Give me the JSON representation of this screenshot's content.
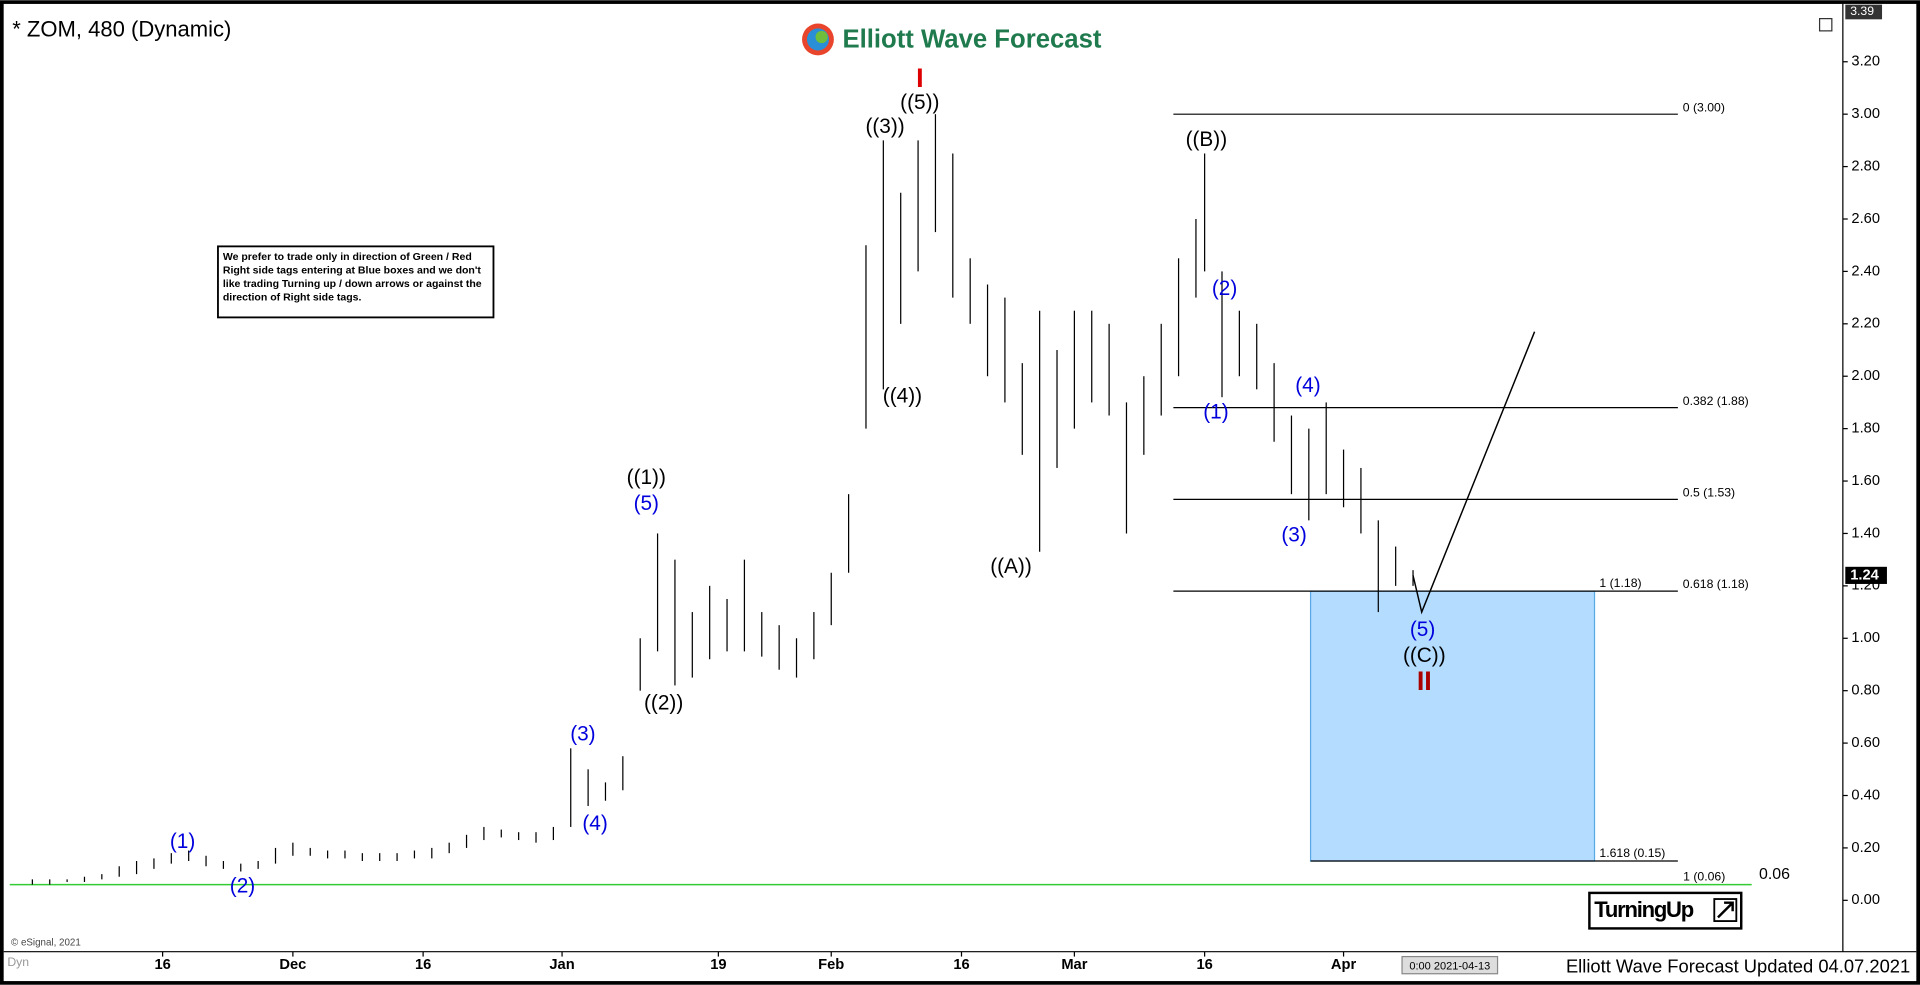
{
  "chart_data": {
    "type": "ohlc",
    "title": "* ZOM, 480 (Dynamic)",
    "logo": "Elliott Wave Forecast",
    "footer": "Elliott Wave Forecast Updated 04.07.2021",
    "cursor_time": "0:00 2021-04-13",
    "copyright": "© eSignal, 2021",
    "corner_label": "Dyn",
    "badge": "TurningUp",
    "note": "We prefer to trade only in direction of Green / Red Right side tags entering at Blue boxes and we don't like trading Turning up / down arrows or against the direction of Right side tags.",
    "bar_color": "#000000",
    "xlim": [
      -2.6,
      208.5
    ],
    "ylim": [
      -0.196,
      3.388
    ],
    "xticks": [
      {
        "value": 15,
        "label": "16"
      },
      {
        "value": 30,
        "label": "Dec"
      },
      {
        "value": 45,
        "label": "16"
      },
      {
        "value": 61,
        "label": "Jan"
      },
      {
        "value": 79,
        "label": "19"
      },
      {
        "value": 92,
        "label": "Feb"
      },
      {
        "value": 107,
        "label": "16"
      },
      {
        "value": 120,
        "label": "Mar"
      },
      {
        "value": 135,
        "label": "16"
      },
      {
        "value": 151,
        "label": "Apr"
      }
    ],
    "yticks": [
      {
        "value": 0,
        "label": "0.00"
      },
      {
        "value": 0.2,
        "label": "0.20"
      },
      {
        "value": 0.4,
        "label": "0.40"
      },
      {
        "value": 0.6,
        "label": "0.60"
      },
      {
        "value": 0.8,
        "label": "0.80"
      },
      {
        "value": 1.0,
        "label": "1.00"
      },
      {
        "value": 1.2,
        "label": "1.20"
      },
      {
        "value": 1.4,
        "label": "1.40"
      },
      {
        "value": 1.6,
        "label": "1.60"
      },
      {
        "value": 1.8,
        "label": "1.80"
      },
      {
        "value": 2.0,
        "label": "2.00"
      },
      {
        "value": 2.2,
        "label": "2.20"
      },
      {
        "value": 2.4,
        "label": "2.40"
      },
      {
        "value": 2.6,
        "label": "2.60"
      },
      {
        "value": 2.8,
        "label": "2.80"
      },
      {
        "value": 3.0,
        "label": "3.00"
      },
      {
        "value": 3.2,
        "label": "3.20"
      }
    ],
    "axis_top": {
      "value": 3.39,
      "label": "3.39"
    },
    "last_price": {
      "value": 1.24,
      "label": "1.24"
    },
    "x": [
      0,
      2,
      4,
      6,
      8,
      10,
      12,
      14,
      16,
      18,
      20,
      22,
      24,
      26,
      28,
      30,
      32,
      34,
      36,
      38,
      40,
      42,
      44,
      46,
      48,
      50,
      52,
      54,
      56,
      58,
      60,
      62,
      64,
      66,
      68,
      70,
      72,
      74,
      76,
      78,
      80,
      82,
      84,
      86,
      88,
      90,
      92,
      94,
      96,
      98,
      100,
      102,
      104,
      106,
      108,
      110,
      112,
      114,
      116,
      118,
      120,
      122,
      124,
      126,
      128,
      130,
      132,
      134,
      135,
      137,
      139,
      141,
      143,
      145,
      147,
      149,
      151,
      153,
      155,
      157,
      159
    ],
    "high": [
      0.08,
      0.08,
      0.08,
      0.09,
      0.1,
      0.13,
      0.15,
      0.16,
      0.18,
      0.19,
      0.17,
      0.15,
      0.14,
      0.15,
      0.2,
      0.22,
      0.2,
      0.19,
      0.19,
      0.18,
      0.18,
      0.18,
      0.19,
      0.2,
      0.22,
      0.25,
      0.28,
      0.27,
      0.26,
      0.26,
      0.28,
      0.58,
      0.5,
      0.45,
      0.55,
      1.0,
      1.4,
      1.3,
      1.1,
      1.2,
      1.15,
      1.3,
      1.1,
      1.05,
      1.0,
      1.1,
      1.25,
      1.55,
      2.5,
      2.9,
      2.7,
      2.9,
      3.0,
      2.85,
      2.45,
      2.35,
      2.3,
      2.05,
      2.25,
      2.1,
      2.25,
      2.25,
      2.2,
      1.9,
      2.0,
      2.2,
      2.45,
      2.6,
      2.85,
      2.4,
      2.25,
      2.2,
      2.05,
      1.85,
      1.8,
      1.9,
      1.72,
      1.65,
      1.45,
      1.35,
      1.26
    ],
    "low": [
      0.06,
      0.06,
      0.07,
      0.07,
      0.08,
      0.09,
      0.1,
      0.12,
      0.14,
      0.15,
      0.13,
      0.12,
      0.11,
      0.12,
      0.14,
      0.17,
      0.17,
      0.16,
      0.16,
      0.15,
      0.15,
      0.15,
      0.16,
      0.16,
      0.18,
      0.2,
      0.23,
      0.24,
      0.23,
      0.22,
      0.23,
      0.28,
      0.36,
      0.38,
      0.42,
      0.8,
      0.95,
      0.82,
      0.85,
      0.92,
      0.95,
      0.95,
      0.93,
      0.88,
      0.85,
      0.92,
      1.05,
      1.25,
      1.8,
      1.95,
      2.2,
      2.4,
      2.55,
      2.3,
      2.2,
      2.0,
      1.9,
      1.7,
      1.33,
      1.65,
      1.8,
      1.9,
      1.85,
      1.4,
      1.7,
      1.85,
      2.0,
      2.3,
      2.4,
      1.92,
      2.0,
      1.95,
      1.75,
      1.55,
      1.45,
      1.55,
      1.5,
      1.4,
      1.1,
      1.2,
      1.2
    ],
    "fib_x": [
      131.4,
      189.5
    ],
    "fib_levels": [
      {
        "label": "0 (3.00)",
        "value": 3.0
      },
      {
        "label": "0.382 (1.88)",
        "value": 1.88
      },
      {
        "label": "0.5 (1.53)",
        "value": 1.53
      },
      {
        "label": "0.618 (1.18)",
        "value": 1.18
      }
    ],
    "box": {
      "x": [
        147.2,
        179.9
      ],
      "y": [
        0.15,
        1.18
      ],
      "color": "#b3dcff",
      "top_label": "1 (1.18)",
      "bottom_label": "1.618 (0.15)",
      "line_end": 189.5
    },
    "support": {
      "label": "1 (0.06)",
      "value": 0.06,
      "value_label": "0.06",
      "color": "#33cc33",
      "end": 198
    },
    "projection": {
      "x": [
        159,
        160,
        173
      ],
      "y": [
        1.24,
        1.1,
        2.17
      ]
    },
    "annotations": [
      {
        "text": "(1)",
        "x": 17.3,
        "y": 0.22,
        "color": "#0000dd"
      },
      {
        "text": "(2)",
        "x": 24.2,
        "y": 0.05,
        "color": "#0000dd"
      },
      {
        "text": "(3)",
        "x": 63.4,
        "y": 0.63,
        "color": "#0000dd"
      },
      {
        "text": "(4)",
        "x": 64.8,
        "y": 0.29,
        "color": "#0000dd"
      },
      {
        "text": "((1))",
        "x": 70.7,
        "y": 1.61,
        "color": "#000000"
      },
      {
        "text": "(5)",
        "x": 70.7,
        "y": 1.51,
        "color": "#0000dd"
      },
      {
        "text": "((2))",
        "x": 72.7,
        "y": 0.75,
        "color": "#000000"
      },
      {
        "text": "((3))",
        "x": 98.2,
        "y": 2.95,
        "color": "#000000"
      },
      {
        "text": "((4))",
        "x": 100.2,
        "y": 1.92,
        "color": "#000000"
      },
      {
        "text": "((5))",
        "x": 102.2,
        "y": 3.04,
        "color": "#000000"
      },
      {
        "text": "I",
        "x": 102.2,
        "y": 3.13,
        "color": "#dd0000"
      },
      {
        "text": "((A))",
        "x": 112.7,
        "y": 1.27,
        "color": "#000000"
      },
      {
        "text": "((B))",
        "x": 135.2,
        "y": 2.9,
        "color": "#000000"
      },
      {
        "text": "(1)",
        "x": 136.3,
        "y": 1.86,
        "color": "#0000dd"
      },
      {
        "text": "(2)",
        "x": 137.3,
        "y": 2.33,
        "color": "#0000dd"
      },
      {
        "text": "(3)",
        "x": 145.3,
        "y": 1.39,
        "color": "#0000dd"
      },
      {
        "text": "(4)",
        "x": 146.9,
        "y": 1.96,
        "color": "#0000dd"
      },
      {
        "text": "(5)",
        "x": 160.1,
        "y": 1.03,
        "color": "#0000dd"
      },
      {
        "text": "((C))",
        "x": 160.3,
        "y": 0.93,
        "color": "#000000"
      },
      {
        "text": "II",
        "x": 160.3,
        "y": 0.83,
        "color": "#aa0000"
      }
    ]
  }
}
